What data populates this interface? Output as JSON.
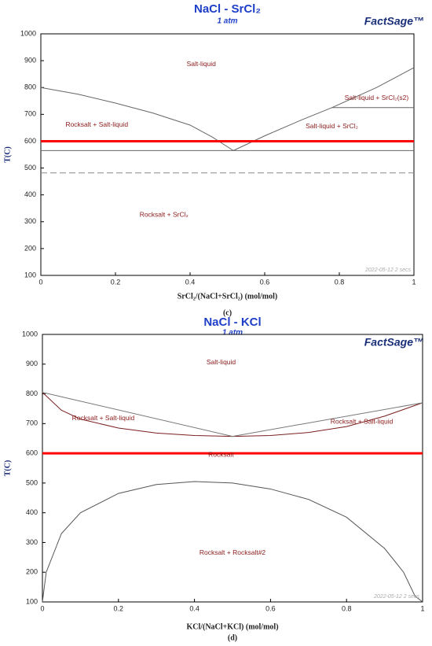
{
  "chart_data": [
    {
      "type": "line",
      "title": "NaCl - SrCl₂",
      "subtitle": "1 atm",
      "logo": "FactSage™",
      "xlabel": "SrCl₂/(NaCl+SrCl₂) (mol/mol)",
      "ylabel": "T(C)",
      "caption": "(c)",
      "xlim": [
        0,
        1
      ],
      "ylim": [
        100,
        1000
      ],
      "xticks": [
        0,
        0.2,
        0.4,
        0.6,
        0.8,
        1
      ],
      "yticks": [
        100,
        200,
        300,
        400,
        500,
        600,
        700,
        800,
        900,
        1000
      ],
      "series": [
        {
          "color": "#666666",
          "x": [
            0,
            0.1,
            0.2,
            0.3,
            0.4,
            0.46,
            0.516
          ],
          "values": [
            800,
            775,
            742,
            705,
            660,
            615,
            565
          ]
        },
        {
          "color": "#666666",
          "x": [
            0.516,
            0.6,
            0.7,
            0.78,
            0.9,
            1
          ],
          "values": [
            565,
            620,
            680,
            725,
            800,
            874
          ]
        },
        {
          "color": "#666666",
          "x": [
            0,
            1
          ],
          "values": [
            565,
            565
          ]
        },
        {
          "color": "#888888",
          "dash": true,
          "x": [
            0,
            1
          ],
          "values": [
            482,
            482
          ]
        },
        {
          "color": "#666666",
          "x": [
            0.78,
            1
          ],
          "values": [
            725,
            725
          ]
        },
        {
          "color": "#ff0000",
          "width": 3,
          "x": [
            0,
            1
          ],
          "values": [
            600,
            600
          ]
        }
      ],
      "annotations": [
        "Salt-liquid",
        "Rocksalt + Salt-liquid",
        "Salt-liquid + SrCl₂(s2)",
        "Salt-liquid + SrCl₂",
        "Rocksalt + SrCl₂"
      ],
      "timestamp": "2022-05-12  2 secs"
    },
    {
      "type": "line",
      "title": "NaCl - KCl",
      "subtitle": "1 atm",
      "logo": "FactSage™",
      "xlabel": "KCl/(NaCl+KCl) (mol/mol)",
      "ylabel": "T(C)",
      "caption": "(d)",
      "xlim": [
        0,
        1
      ],
      "ylim": [
        100,
        1000
      ],
      "xticks": [
        0,
        0.2,
        0.4,
        0.6,
        0.8,
        1
      ],
      "yticks": [
        100,
        200,
        300,
        400,
        500,
        600,
        700,
        800,
        900,
        1000
      ],
      "series": [
        {
          "color": "#7a1f1f",
          "x": [
            0,
            0.05,
            0.1,
            0.2,
            0.3,
            0.4,
            0.5,
            0.6,
            0.7,
            0.8,
            0.9,
            1
          ],
          "values": [
            805,
            745,
            715,
            685,
            668,
            660,
            657,
            660,
            670,
            690,
            725,
            770
          ]
        },
        {
          "color": "#777777",
          "x": [
            0,
            0.5,
            1
          ],
          "values": [
            805,
            657,
            770
          ]
        },
        {
          "color": "#555555",
          "x": [
            0,
            0.01,
            0.05,
            0.1,
            0.2,
            0.3,
            0.4,
            0.5,
            0.6,
            0.7,
            0.8,
            0.9,
            0.95,
            0.98,
            1
          ],
          "values": [
            100,
            200,
            330,
            400,
            465,
            495,
            505,
            500,
            480,
            445,
            385,
            280,
            200,
            120,
            100
          ]
        },
        {
          "color": "#ff0000",
          "width": 3,
          "x": [
            0,
            1
          ],
          "values": [
            600,
            600
          ]
        }
      ],
      "annotations": [
        "Salt-liquid",
        "Rocksalt + Salt-liquid",
        "Rocksalt + Salt-liquid",
        "Rocksalt",
        "Rocksalt + Rocksalt#2"
      ],
      "timestamp": "2022-05-12  2 secs"
    }
  ]
}
